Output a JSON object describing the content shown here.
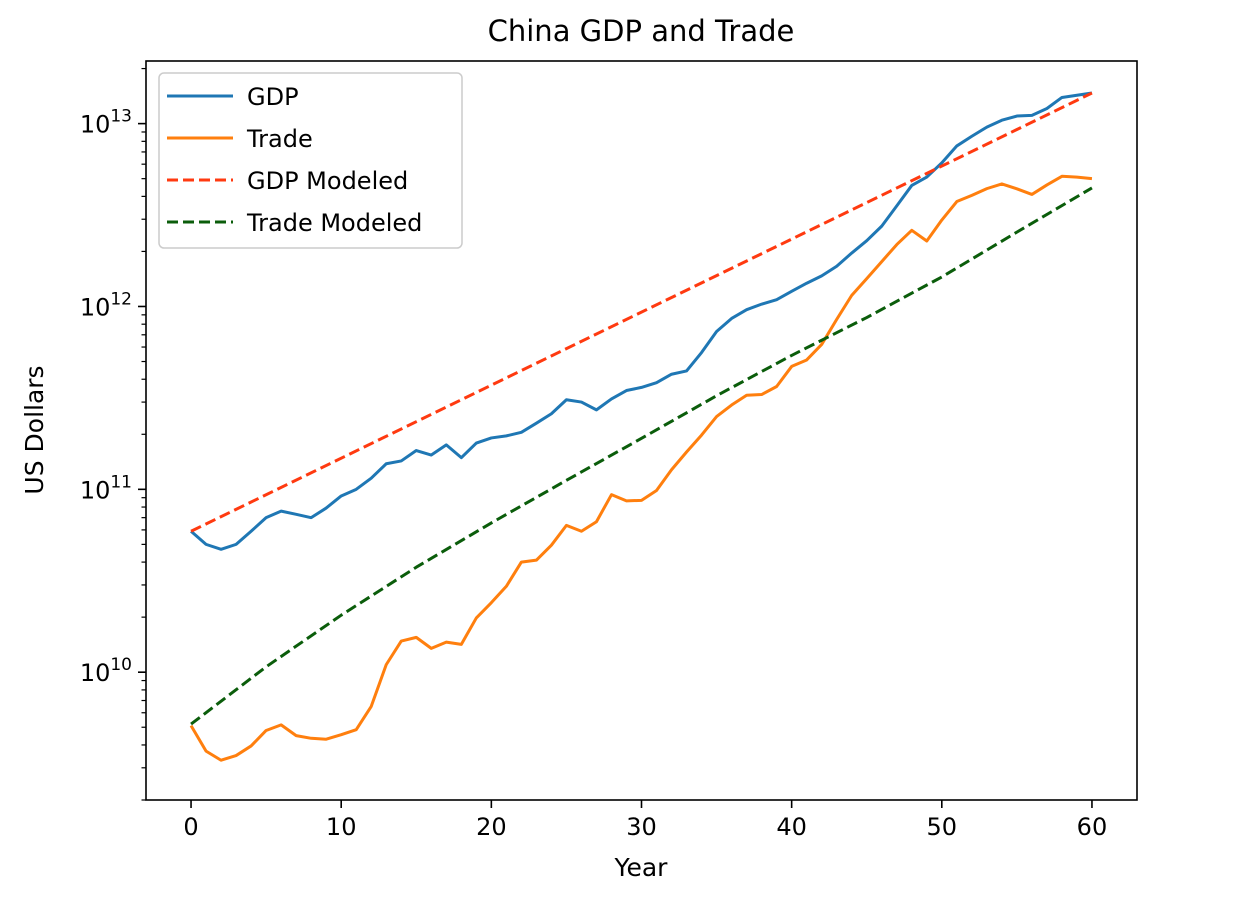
{
  "chart_data": {
    "type": "line",
    "title": "China GDP and Trade",
    "xlabel": "Year",
    "ylabel": "US Dollars",
    "xscale": "linear",
    "yscale": "log",
    "xlim": [
      -3,
      63
    ],
    "ylim": [
      2000000000,
      22000000000000
    ],
    "x_ticks": [
      0,
      10,
      20,
      30,
      40,
      50,
      60
    ],
    "y_ticks": [
      {
        "value": 10000000000,
        "base": "10",
        "exp": "10"
      },
      {
        "value": 100000000000,
        "base": "10",
        "exp": "11"
      },
      {
        "value": 1000000000000,
        "base": "10",
        "exp": "12"
      },
      {
        "value": 10000000000000,
        "base": "10",
        "exp": "13"
      }
    ],
    "grid": false,
    "legend_position": "upper-left",
    "series": [
      {
        "name": "GDP",
        "color": "#1f77b4",
        "style": "solid",
        "x": [
          0,
          1,
          2,
          3,
          4,
          5,
          6,
          7,
          8,
          9,
          10,
          11,
          12,
          13,
          14,
          15,
          16,
          17,
          18,
          19,
          20,
          21,
          22,
          23,
          24,
          25,
          26,
          27,
          28,
          29,
          30,
          31,
          32,
          33,
          34,
          35,
          36,
          37,
          38,
          39,
          40,
          41,
          42,
          43,
          44,
          45,
          46,
          47,
          48,
          49,
          50,
          51,
          52,
          53,
          54,
          55,
          56,
          57,
          58,
          59,
          60
        ],
        "y": [
          59000000000.0,
          50000000000.0,
          47000000000.0,
          50000000000.0,
          59000000000.0,
          70000000000.0,
          76000000000.0,
          73000000000.0,
          70000000000.0,
          79000000000.0,
          92000000000.0,
          100000000000.0,
          115000000000.0,
          138000000000.0,
          143000000000.0,
          163000000000.0,
          154000000000.0,
          175000000000.0,
          149000000000.0,
          179000000000.0,
          191000000000.0,
          196000000000.0,
          205000000000.0,
          230000000000.0,
          259000000000.0,
          309000000000.0,
          300000000000.0,
          272000000000.0,
          312000000000.0,
          347000000000.0,
          361000000000.0,
          383000000000.0,
          426000000000.0,
          444000000000.0,
          560000000000.0,
          730000000000.0,
          860000000000.0,
          960000000000.0,
          1030000000000.0,
          1090000000000.0,
          1210000000000.0,
          1340000000000.0,
          1470000000000.0,
          1660000000000.0,
          1960000000000.0,
          2290000000000.0,
          2750000000000.0,
          3550000000000.0,
          4590000000000.0,
          5100000000000.0,
          6100000000000.0,
          7550000000000.0,
          8530000000000.0,
          9570000000000.0,
          10440000000000.0,
          11000000000000.0,
          11100000000000.0,
          12100000000000.0,
          13900000000000.0,
          14300000000000.0,
          14700000000000.0
        ]
      },
      {
        "name": "Trade",
        "color": "#ff7f0e",
        "style": "solid",
        "x": [
          0,
          1,
          2,
          3,
          4,
          5,
          6,
          7,
          8,
          9,
          10,
          11,
          12,
          13,
          14,
          15,
          16,
          17,
          18,
          19,
          20,
          21,
          22,
          23,
          24,
          25,
          26,
          27,
          28,
          29,
          30,
          31,
          32,
          33,
          34,
          35,
          36,
          37,
          38,
          39,
          40,
          41,
          42,
          43,
          44,
          45,
          46,
          47,
          48,
          49,
          50,
          51,
          52,
          53,
          54,
          55,
          56,
          57,
          58,
          59,
          60
        ],
        "y": [
          5100000000.0,
          3700000000.0,
          3300000000.0,
          3500000000.0,
          3950000000.0,
          4800000000.0,
          5150000000.0,
          4500000000.0,
          4350000000.0,
          4300000000.0,
          4550000000.0,
          4850000000.0,
          6500000000.0,
          11000000000.0,
          14800000000.0,
          15500000000.0,
          13500000000.0,
          14600000000.0,
          14200000000.0,
          19800000000.0,
          24000000000.0,
          29500000000.0,
          40000000000.0,
          41000000000.0,
          49500000000.0,
          63500000000.0,
          59000000000.0,
          66500000000.0,
          93500000000.0,
          86500000000.0,
          87000000000.0,
          98500000000.0,
          128000000000.0,
          160000000000.0,
          198000000000.0,
          250000000000.0,
          289000000000.0,
          327000000000.0,
          330000000000.0,
          365000000000.0,
          470000000000.0,
          510000000000.0,
          620000000000.0,
          850000000000.0,
          1150000000000.0,
          1420000000000.0,
          1760000000000.0,
          2180000000000.0,
          2610000000000.0,
          2280000000000.0,
          2970000000000.0,
          3750000000000.0,
          4050000000000.0,
          4410000000000.0,
          4680000000000.0,
          4400000000000.0,
          4100000000000.0,
          4620000000000.0,
          5150000000000.0,
          5100000000000.0,
          5000000000000.0
        ]
      },
      {
        "name": "GDP Modeled",
        "color": "#ff3a10",
        "style": "dashed",
        "x": [
          0,
          60
        ],
        "y": [
          59000000000.0,
          14700000000000.0
        ]
      },
      {
        "name": "Trade Modeled",
        "color": "#0b5d0b",
        "style": "dashed",
        "x": [
          0,
          5,
          10,
          15,
          20,
          25,
          30,
          35,
          40,
          45,
          50,
          55,
          60
        ],
        "y": [
          5200000000.0,
          10700000000.0,
          20500000000.0,
          37500000000.0,
          65500000000.0,
          112000000000.0,
          190000000000.0,
          325000000000.0,
          540000000000.0,
          870000000000.0,
          1450000000000.0,
          2550000000000.0,
          4450000000000.0
        ]
      }
    ]
  }
}
